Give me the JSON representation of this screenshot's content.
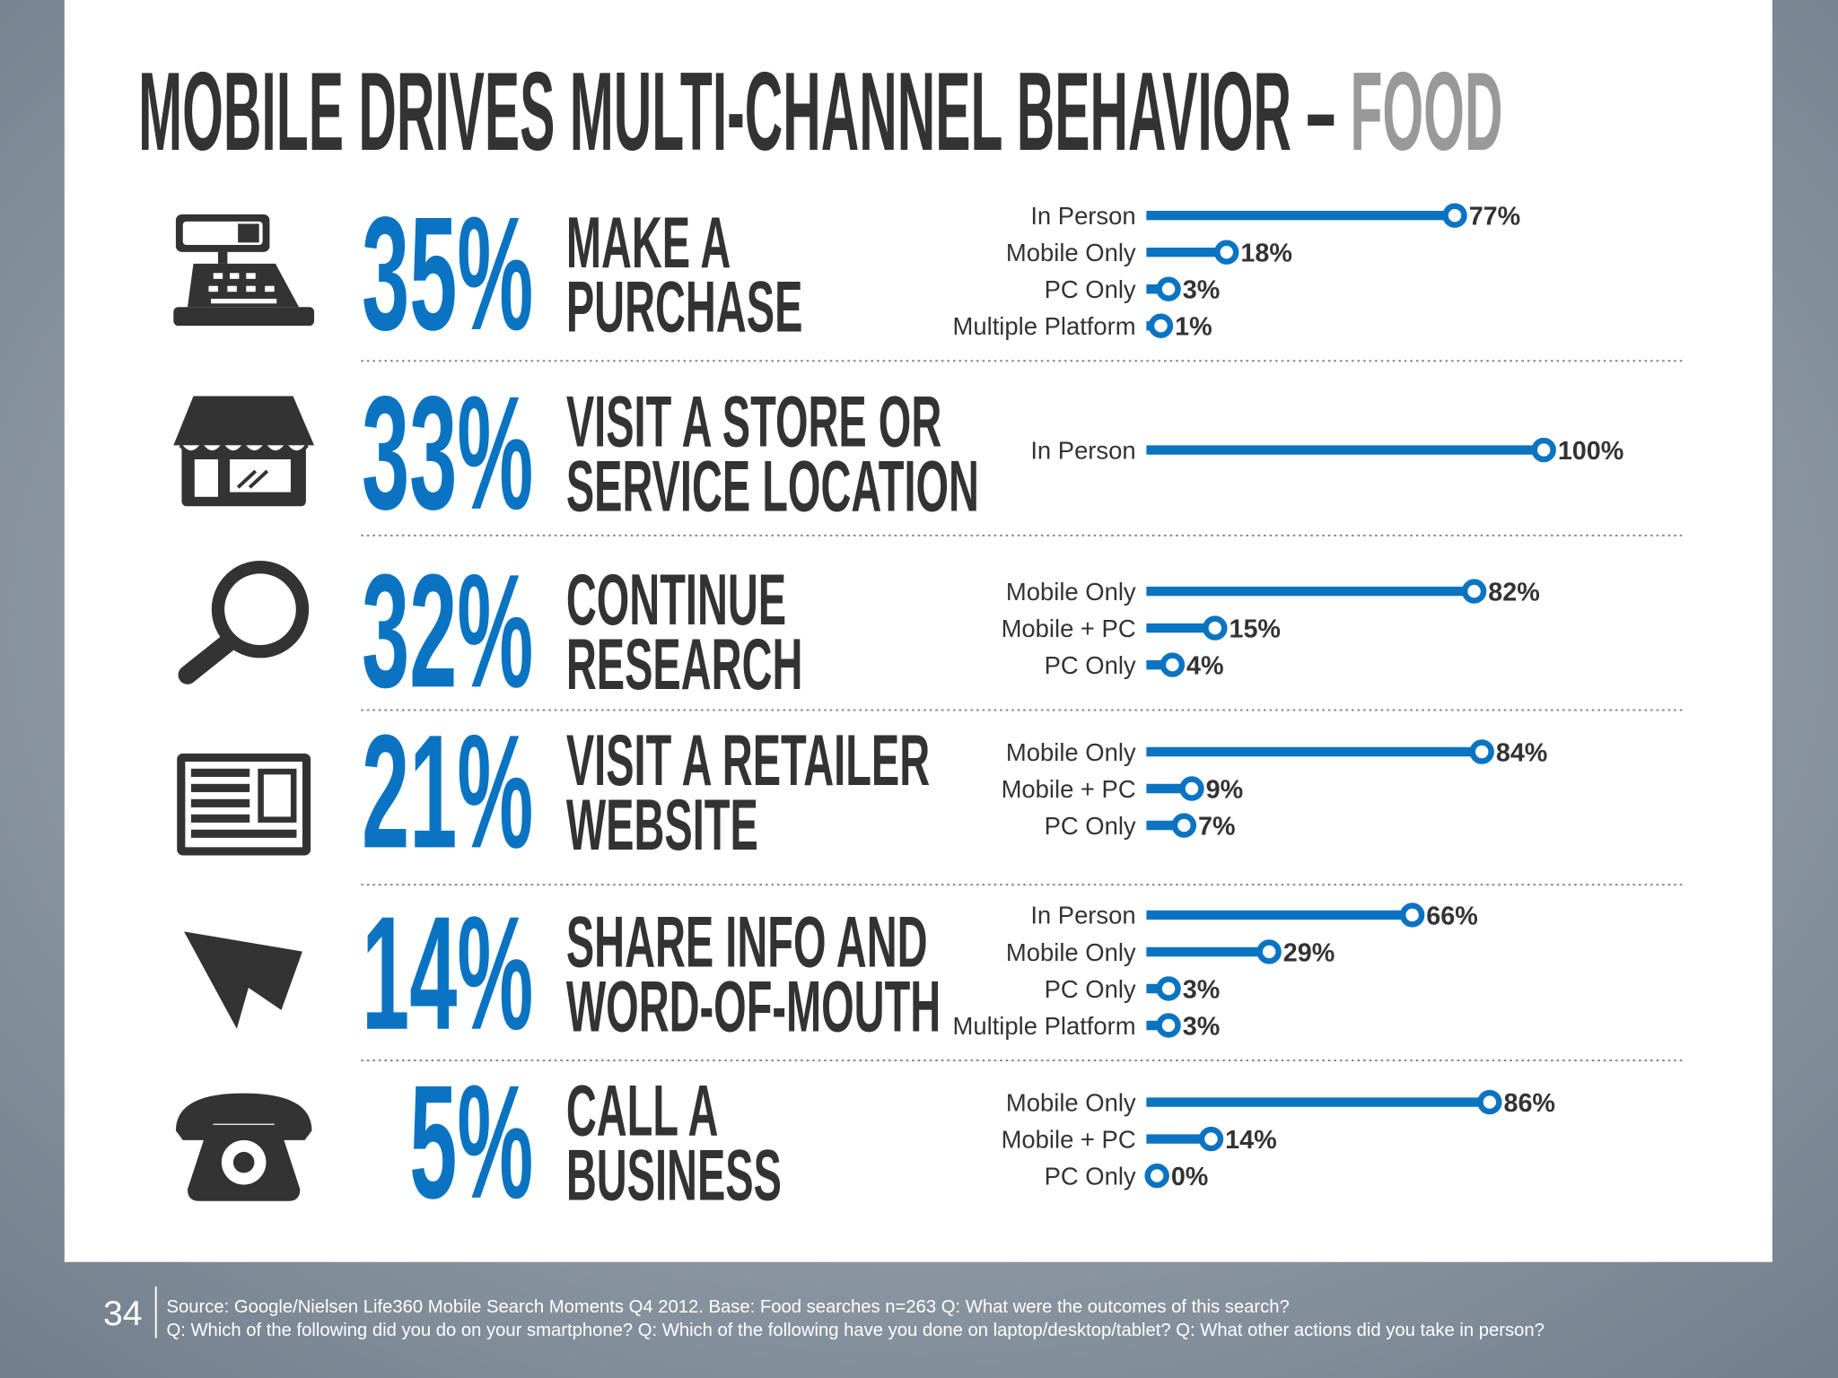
{
  "title": "MOBILE DRIVES MULTI-CHANNEL BEHAVIOR – ",
  "title_highlight": "FOOD",
  "chart_data": [
    {
      "type": "bar",
      "headline": "35%",
      "label": [
        "MAKE A",
        "PURCHASE"
      ],
      "color": "#0a74c2",
      "categories": [
        "In Person",
        "Mobile Only",
        "PC Only",
        "Multiple Platform"
      ],
      "values": [
        77,
        18,
        3,
        1
      ],
      "value_labels": [
        "77%",
        "18%",
        "3%",
        "1%"
      ]
    },
    {
      "type": "bar",
      "headline": "33%",
      "label": [
        "VISIT A STORE OR",
        "SERVICE LOCATION"
      ],
      "color": "#0a74c2",
      "categories": [
        "In Person"
      ],
      "values": [
        100
      ],
      "value_labels": [
        "100%"
      ]
    },
    {
      "type": "bar",
      "headline": "32%",
      "label": [
        "CONTINUE",
        "RESEARCH"
      ],
      "color": "#0a74c2",
      "categories": [
        "Mobile Only",
        "Mobile + PC",
        "PC Only"
      ],
      "values": [
        82,
        15,
        4
      ],
      "value_labels": [
        "82%",
        "15%",
        "4%"
      ]
    },
    {
      "type": "bar",
      "headline": "21%",
      "label": [
        "VISIT A RETAILER",
        "WEBSITE"
      ],
      "color": "#0a74c2",
      "categories": [
        "Mobile Only",
        "Mobile + PC",
        "PC Only"
      ],
      "values": [
        84,
        9,
        7
      ],
      "value_labels": [
        "84%",
        "9%",
        "7%"
      ]
    },
    {
      "type": "bar",
      "headline": "14%",
      "label": [
        "SHARE INFO AND",
        "WORD-OF-MOUTH"
      ],
      "color": "#0a74c2",
      "categories": [
        "In Person",
        "Mobile Only",
        "PC Only",
        "Multiple Platform"
      ],
      "values": [
        66,
        29,
        3,
        3
      ],
      "value_labels": [
        "66%",
        "29%",
        "3%",
        "3%"
      ]
    },
    {
      "type": "bar",
      "headline": "5%",
      "label": [
        "CALL A",
        "BUSINESS"
      ],
      "color": "#0a74c2",
      "categories": [
        "Mobile Only",
        "Mobile + PC",
        "PC Only"
      ],
      "values": [
        86,
        14,
        0
      ],
      "value_labels": [
        "86%",
        "14%",
        "0%"
      ]
    }
  ],
  "footer": {
    "page_number": "34",
    "source": [
      "Source: Google/Nielsen Life360 Mobile Search Moments Q4 2012. Base: Food searches n=263 Q: What were the outcomes of this search?",
      "Q: Which of the following did you do on your smartphone? Q: Which of the following have you done on laptop/desktop/tablet? Q: What other actions did you take in person?"
    ]
  }
}
